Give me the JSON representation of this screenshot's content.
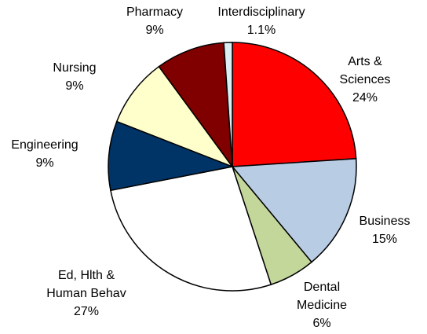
{
  "chart_data": {
    "type": "pie",
    "categories": [
      "Arts &\nSciences",
      "Business",
      "Dental\nMedicine",
      "Ed, Hlth &\nHuman Behav",
      "Engineering",
      "Nursing",
      "Pharmacy",
      "Interdisciplinary"
    ],
    "values": [
      24,
      15,
      6,
      27,
      9,
      9,
      9,
      1.1
    ],
    "value_labels": [
      "24%",
      "15%",
      "6%",
      "27%",
      "9%",
      "9%",
      "9%",
      "1.1%"
    ],
    "colors": [
      "#ff0000",
      "#b8cce4",
      "#c4d79b",
      "#ffffff",
      "#003366",
      "#ffffcc",
      "#800000",
      "#dbeef4"
    ]
  }
}
